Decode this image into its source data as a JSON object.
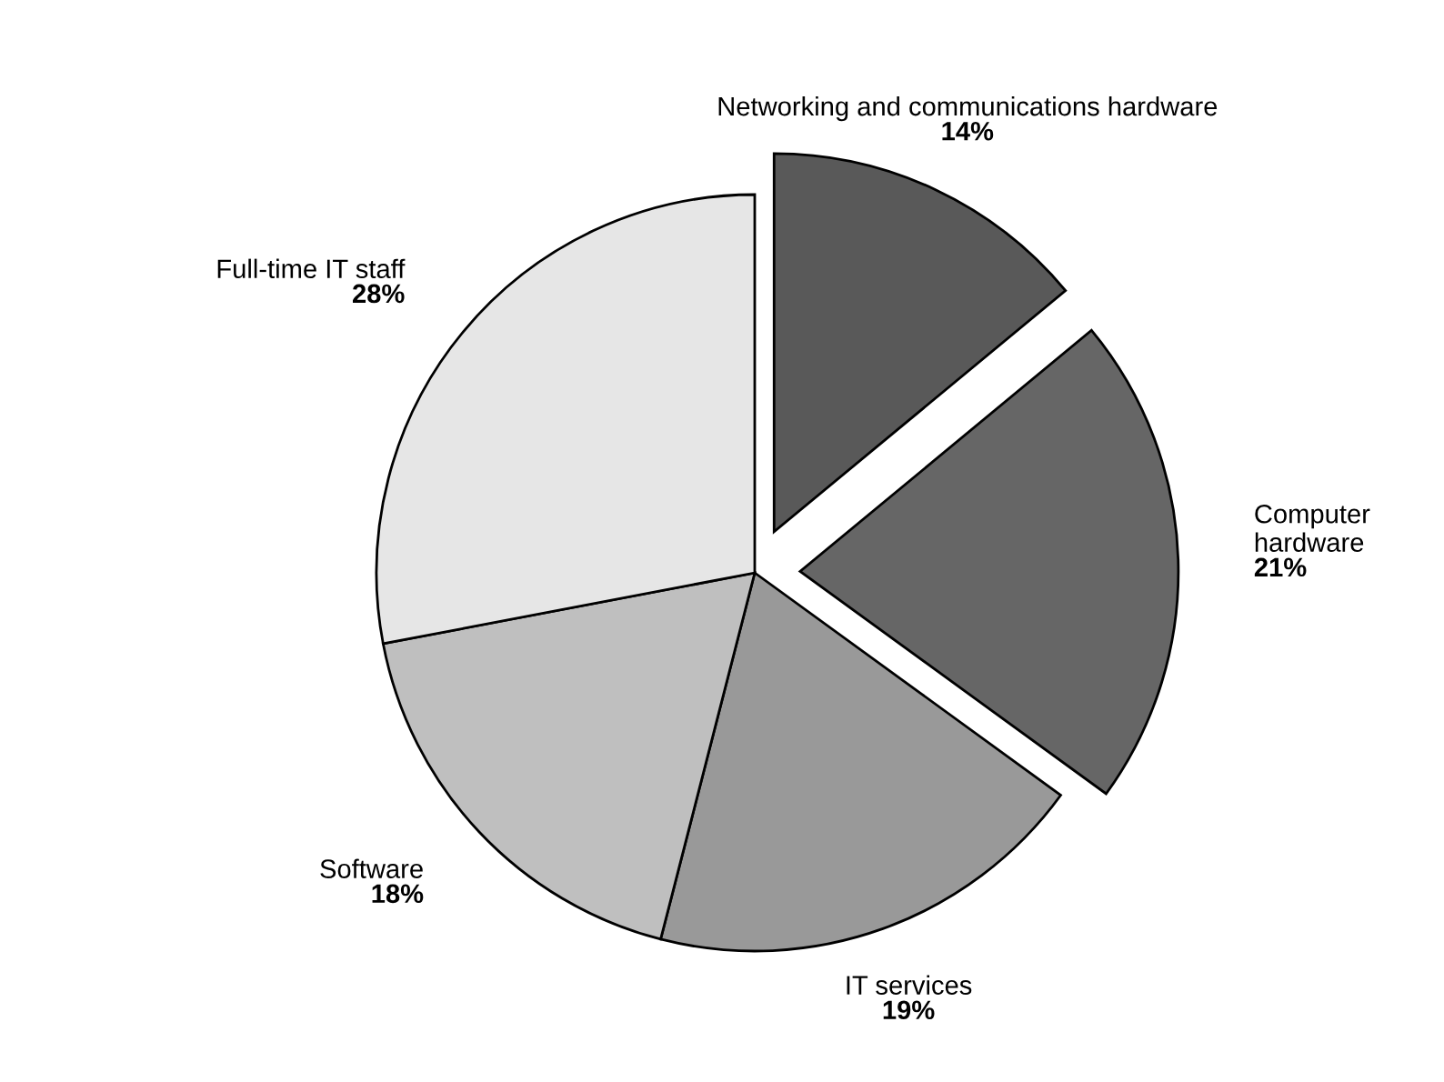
{
  "chart_data": {
    "type": "pie",
    "categories": [
      "Networking and communications hardware",
      "Computer hardware",
      "IT services",
      "Software",
      "Full-time IT staff"
    ],
    "values": [
      14,
      21,
      19,
      18,
      28
    ],
    "value_labels": [
      "14%",
      "21%",
      "19%",
      "18%",
      "28%"
    ],
    "colors": [
      "#595959",
      "#666666",
      "#999999",
      "#bfbfbf",
      "#e6e6e6"
    ],
    "legend": false
  }
}
